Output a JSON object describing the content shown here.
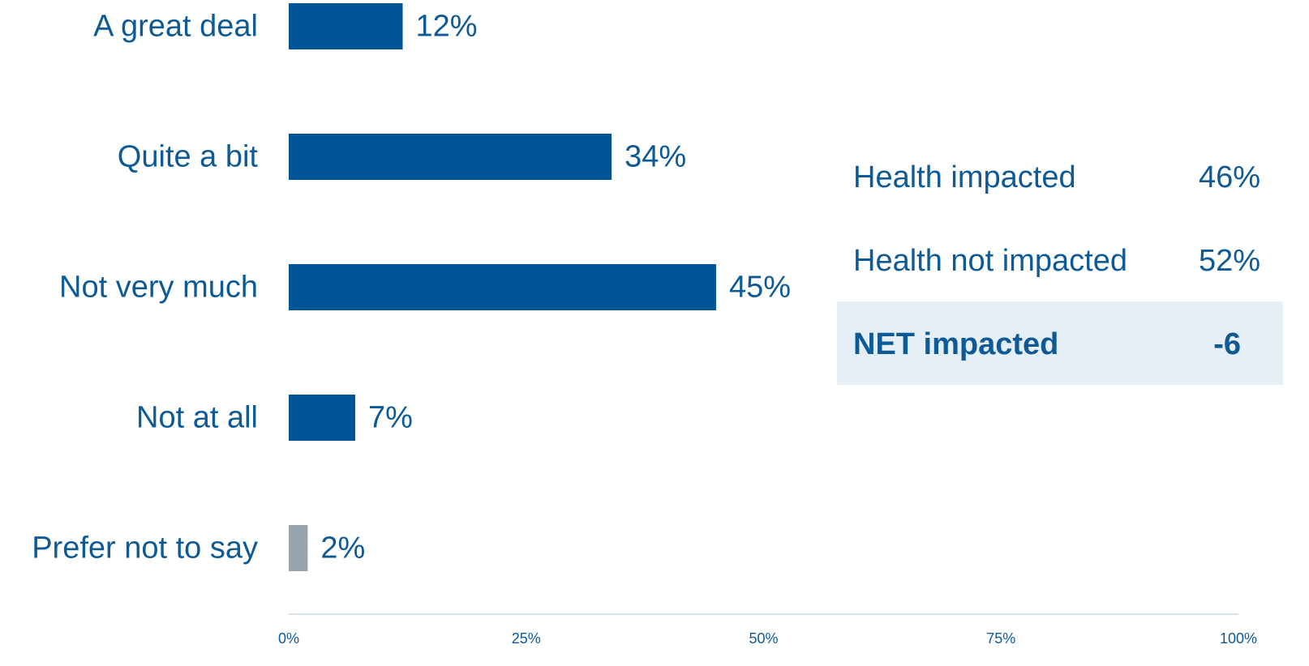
{
  "colors": {
    "bar": "#005596",
    "bar_muted": "#9aa4ad",
    "text": "#0d5a96",
    "axis": "#c9d7e6",
    "net_bg": "#e6eef6"
  },
  "chart_data": {
    "type": "bar",
    "orientation": "horizontal",
    "categories": [
      "A great deal",
      "Quite a bit",
      "Not very much",
      "Not at all",
      "Prefer not to say"
    ],
    "values": [
      12,
      34,
      45,
      7,
      2
    ],
    "value_labels": [
      "12%",
      "34%",
      "45%",
      "7%",
      "2%"
    ],
    "bar_colors": [
      "#005596",
      "#005596",
      "#005596",
      "#005596",
      "#9aa4ad"
    ],
    "xlim": [
      0,
      100
    ],
    "xticks": [
      0,
      25,
      50,
      75,
      100
    ],
    "xtick_labels": [
      "0%",
      "25%",
      "50%",
      "75%",
      "100%"
    ],
    "grid": false,
    "legend": "none"
  },
  "summary": {
    "rows": [
      {
        "label": "Health impacted",
        "value": "46%"
      },
      {
        "label": "Health not impacted",
        "value": "52%"
      }
    ],
    "net": {
      "label": "NET impacted",
      "value": "-6"
    }
  }
}
